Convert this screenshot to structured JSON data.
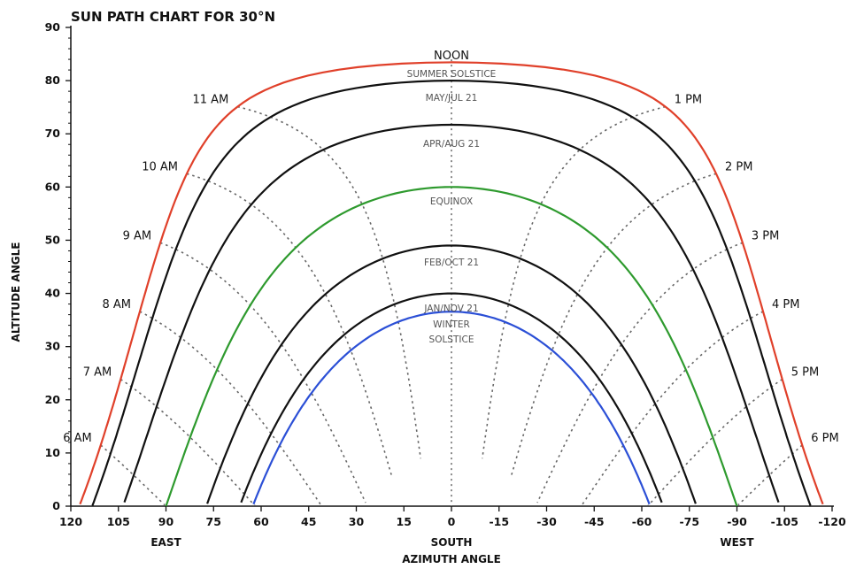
{
  "chart_data": {
    "type": "line",
    "title": "SUN PATH CHART FOR 30°N",
    "xlabel": "AZIMUTH ANGLE",
    "ylabel": "ALTITUDE ANGLE",
    "xlim": [
      120,
      -120
    ],
    "ylim": [
      0,
      90
    ],
    "x_ticks": [
      120,
      105,
      90,
      75,
      60,
      45,
      30,
      15,
      0,
      -15,
      -30,
      -45,
      -60,
      -75,
      -90,
      -105,
      -120
    ],
    "y_ticks": [
      0,
      10,
      20,
      30,
      40,
      50,
      60,
      70,
      80,
      90
    ],
    "direction_labels": [
      {
        "text": "EAST",
        "x": 90
      },
      {
        "text": "SOUTH",
        "x": 0
      },
      {
        "text": "WEST",
        "x": -90
      }
    ],
    "noon_label": "NOON",
    "series": [
      {
        "name": "SUMMER SOLSTICE",
        "color": "#e0402a",
        "declination": 23.44
      },
      {
        "name": "MAY/JUL 21",
        "color": "#111111",
        "declination": 20.0
      },
      {
        "name": "APR/AUG 21",
        "color": "#111111",
        "declination": 11.7
      },
      {
        "name": "EQUINOX",
        "color": "#2e9a2e",
        "declination": 0
      },
      {
        "name": "FEB/OCT 21",
        "color": "#111111",
        "declination": -11.0
      },
      {
        "name": "JAN/NOV 21",
        "color": "#111111",
        "declination": -20.0
      },
      {
        "name": "WINTER SOLSTICE",
        "color": "#2b4fd6",
        "declination": -23.44
      }
    ],
    "latitude": 30,
    "hour_labels": [
      "6 AM",
      "7 AM",
      "8 AM",
      "9 AM",
      "10 AM",
      "11 AM",
      "1 PM",
      "2 PM",
      "3 PM",
      "4 PM",
      "5 PM",
      "6 PM"
    ],
    "hour_angles": [
      90,
      75,
      60,
      45,
      30,
      15,
      -15,
      -30,
      -45,
      -60,
      -75,
      -90
    ],
    "curve_labels": {
      "summer": "SUMMER SOLSTICE",
      "mayjul": "MAY/JUL 21",
      "aprau": "APR/AUG 21",
      "equinox": "EQUINOX",
      "febtoct": "FEB/OCT 21",
      "jannov": "JAN/NOV 21",
      "winter_1": "WINTER",
      "winter_2": "SOLSTICE"
    },
    "grid": false
  }
}
